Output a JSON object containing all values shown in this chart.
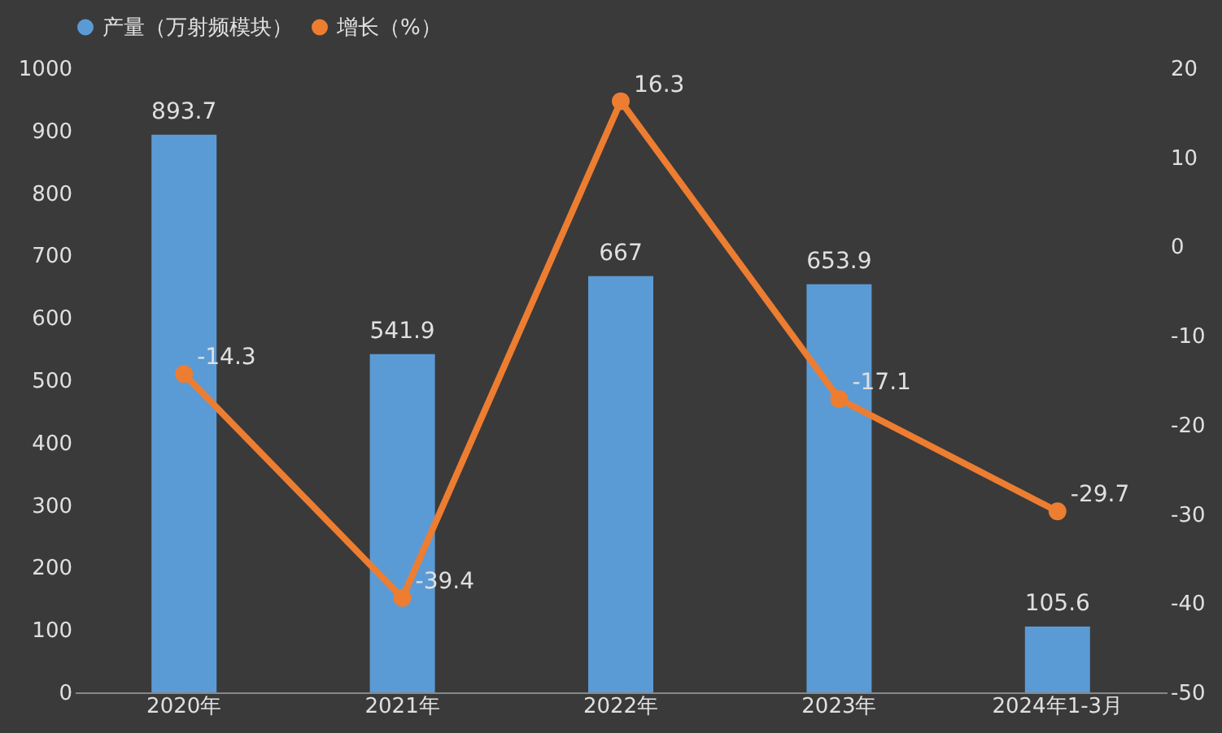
{
  "chart_data": {
    "type": "bar",
    "categories": [
      "2020年",
      "2021年",
      "2022年",
      "2023年",
      "2024年1-3月"
    ],
    "series": [
      {
        "name": "产量（万射频模块）",
        "color": "#5b9bd5",
        "values": [
          893.7,
          541.9,
          667,
          653.9,
          105.6
        ]
      },
      {
        "name": "增长（%）",
        "type": "line",
        "color": "#ed7d31",
        "axis": "y2",
        "marker": "circle",
        "values": [
          -14.3,
          -39.4,
          16.3,
          -17.1,
          -29.7
        ]
      }
    ],
    "ylim": [
      0,
      1000
    ],
    "yticks": [
      0,
      100,
      200,
      300,
      400,
      500,
      600,
      700,
      800,
      900,
      1000
    ],
    "y2lim": [
      -50,
      20
    ],
    "y2ticks": [
      -50,
      -40,
      -30,
      -20,
      -10,
      0,
      10,
      20
    ],
    "data_labels": true,
    "grid": false,
    "legend": "top"
  }
}
